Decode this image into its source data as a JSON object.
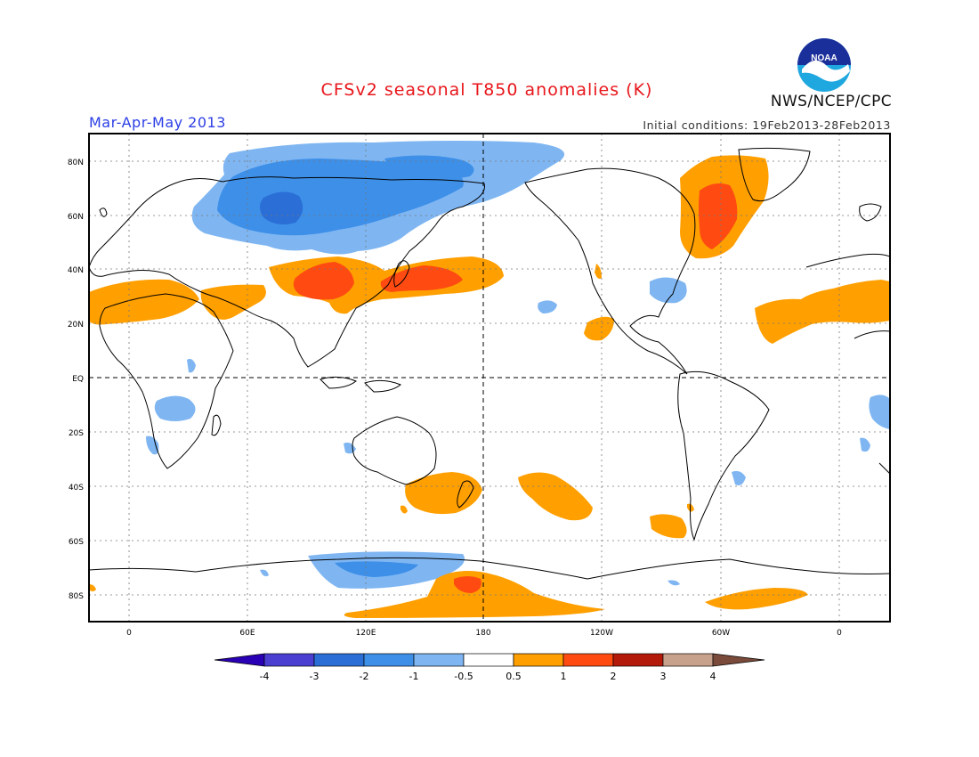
{
  "title": "CFSv2 seasonal T850 anomalies (K)",
  "season": "Mar-Apr-May 2013",
  "initial_conditions": "Initial conditions: 19Feb2013-28Feb2013",
  "agency": "NWS/NCEP/CPC",
  "logo_text": "NOAA",
  "lat_labels": [
    "80N",
    "60N",
    "40N",
    "20N",
    "EQ",
    "20S",
    "40S",
    "60S",
    "80S"
  ],
  "lon_labels": [
    "0",
    "60E",
    "120E",
    "180",
    "120W",
    "60W",
    "0"
  ],
  "colorbar": {
    "ticks": [
      "-4",
      "-3",
      "-2",
      "-1",
      "-0.5",
      "0.5",
      "1",
      "2",
      "3",
      "4"
    ],
    "colors": [
      "#2a00b4",
      "#4a3fd1",
      "#2a6ed6",
      "#3d8fe8",
      "#7fb6f2",
      "#ffffff",
      "#ff9f00",
      "#ff4a12",
      "#b41a0a",
      "#c7a18b",
      "#7a4a3a"
    ]
  },
  "colors": {
    "title": "#e8161b",
    "season": "#2c3fe6",
    "cold_1": "#7fb6f2",
    "cold_2": "#3d8fe8",
    "cold_3": "#2a6ed6",
    "warm_1": "#ff9f00",
    "warm_2": "#ff4a12"
  }
}
